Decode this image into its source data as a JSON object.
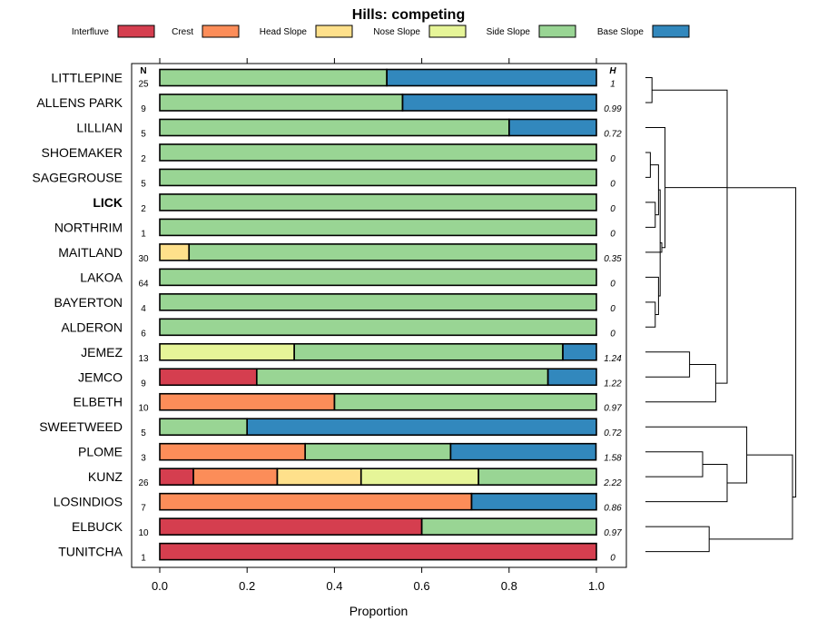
{
  "chart_data": {
    "type": "bar",
    "stacked": true,
    "orientation": "horizontal",
    "title": "Hills: competing",
    "xlabel": "Proportion",
    "ylabel": "",
    "xlim": [
      0,
      1
    ],
    "x_ticks": [
      "0.0",
      "0.2",
      "0.4",
      "0.6",
      "0.8",
      "1.0"
    ],
    "n_header": "N",
    "h_header": "H",
    "legend": [
      {
        "name": "Interfluve",
        "color": "#D53E4F"
      },
      {
        "name": "Crest",
        "color": "#FC8D59"
      },
      {
        "name": "Head Slope",
        "color": "#FEE08B"
      },
      {
        "name": "Nose Slope",
        "color": "#E6F598"
      },
      {
        "name": "Side Slope",
        "color": "#99D594"
      },
      {
        "name": "Base Slope",
        "color": "#3288BD"
      }
    ],
    "categories": [
      "LITTLEPINE",
      "ALLENS PARK",
      "LILLIAN",
      "SHOEMAKER",
      "SAGEGROUSE",
      "LICK",
      "NORTHRIM",
      "MAITLAND",
      "LAKOA",
      "BAYERTON",
      "ALDERON",
      "JEMEZ",
      "JEMCO",
      "ELBETH",
      "SWEETWEED",
      "PLOME",
      "KUNZ",
      "LOSINDIOS",
      "ELBUCK",
      "TUNITCHA"
    ],
    "highlight": "LICK",
    "n": [
      "25",
      "9",
      "5",
      "2",
      "5",
      "2",
      "1",
      "30",
      "64",
      "4",
      "6",
      "13",
      "9",
      "10",
      "5",
      "3",
      "26",
      "7",
      "10",
      "1"
    ],
    "h": [
      "1",
      "0.99",
      "0.72",
      "0",
      "0",
      "0",
      "0",
      "0.35",
      "0",
      "0",
      "0",
      "1.24",
      "1.22",
      "0.97",
      "0.72",
      "1.58",
      "2.22",
      "0.86",
      "0.97",
      "0"
    ],
    "series": [
      {
        "name": "Interfluve",
        "values": [
          0,
          0,
          0,
          0,
          0,
          0,
          0,
          0,
          0,
          0,
          0,
          0,
          0.222,
          0,
          0,
          0,
          0.077,
          0,
          0.6,
          1
        ]
      },
      {
        "name": "Crest",
        "values": [
          0,
          0,
          0,
          0,
          0,
          0,
          0,
          0,
          0,
          0,
          0,
          0,
          0,
          0.4,
          0,
          0.333,
          0.192,
          0.714,
          0,
          0
        ]
      },
      {
        "name": "Head Slope",
        "values": [
          0,
          0,
          0,
          0,
          0,
          0,
          0,
          0.067,
          0,
          0,
          0,
          0,
          0,
          0,
          0,
          0,
          0.192,
          0,
          0,
          0
        ]
      },
      {
        "name": "Nose Slope",
        "values": [
          0,
          0,
          0,
          0,
          0,
          0,
          0,
          0,
          0,
          0,
          0,
          0.308,
          0,
          0,
          0,
          0,
          0.269,
          0,
          0,
          0
        ]
      },
      {
        "name": "Side Slope",
        "values": [
          0.52,
          0.556,
          0.8,
          1,
          1,
          1,
          1,
          0.933,
          1,
          1,
          1,
          0.615,
          0.667,
          0.6,
          0.2,
          0.333,
          0.27,
          0,
          0.4,
          0
        ]
      },
      {
        "name": "Base Slope",
        "values": [
          0.48,
          0.444,
          0.2,
          0,
          0,
          0,
          0,
          0,
          0,
          0,
          0,
          0.077,
          0.111,
          0,
          0.8,
          0.333,
          0,
          0.286,
          0,
          0
        ]
      }
    ]
  }
}
